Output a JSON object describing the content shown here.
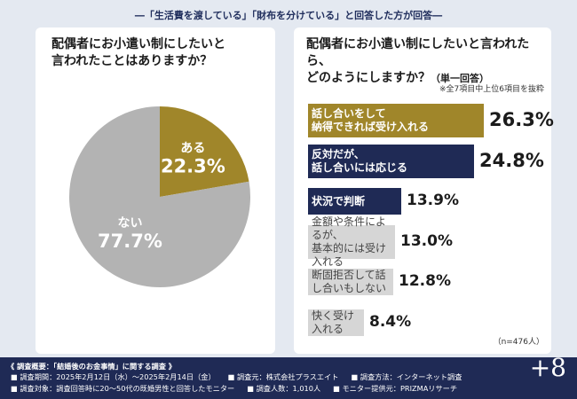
{
  "caption": "―「生活費を渡している」「財布を分けている」と回答した方が回答―",
  "left": {
    "question": "配偶者にお小遣い制にしたいと\n言われたことはありますか？"
  },
  "right": {
    "question": "配偶者にお小遣い制にしたいと言われたら、\nどのようにしますか？",
    "question_suffix": "（単一回答）",
    "note": "※全7項目中上位6項目を抜粋",
    "sample": "（n=476人）"
  },
  "colors": {
    "olive": "#a0862a",
    "navy": "#1f2a55",
    "gray": "#b3b3b3"
  },
  "chart_data": [
    {
      "type": "pie",
      "slices": [
        {
          "label": "ある",
          "value": 22.3,
          "display": "22.3%",
          "color": "#a0862a"
        },
        {
          "label": "ない",
          "value": 77.7,
          "display": "77.7%",
          "color": "#b3b3b3"
        }
      ]
    },
    {
      "type": "bar",
      "orientation": "horizontal",
      "categories": [
        "話し合いをして\n納得できれば受け入れる",
        "反対だが、\n話し合いには応じる",
        "状況で判断",
        "金額や条件によるが、\n基本的には受け入れる",
        "断固拒否して話し合いもしない",
        "快く受け入れる"
      ],
      "values": [
        26.3,
        24.8,
        13.9,
        13.0,
        12.8,
        8.4
      ],
      "labels": [
        "26.3%",
        "24.8%",
        "13.9%",
        "13.0%",
        "12.8%",
        "8.4%"
      ],
      "colors": [
        "#a0862a",
        "#1f2a55",
        "#1f2a55",
        "#d6d6d6",
        "#d6d6d6",
        "#d6d6d6"
      ],
      "text_colors": [
        "#ffffff",
        "#ffffff",
        "#ffffff",
        "#444444",
        "#444444",
        "#444444"
      ]
    }
  ],
  "footer": {
    "title": "《 調査概要：「結婚後のお金事情」に関する調査 》",
    "row1": [
      "■ 調査期間：2025年2月12日（水）～2025年2月14日（金）",
      "■ 調査元：株式会社プラスエイト",
      "■ 調査方法：インターネット調査"
    ],
    "row2": [
      "■ 調査対象：調査回答時に20～50代の既婚男性と回答したモニター",
      "■ 調査人数：1,010人",
      "■ モニター提供元：PRIZMAリサーチ"
    ],
    "logo": "+8"
  }
}
